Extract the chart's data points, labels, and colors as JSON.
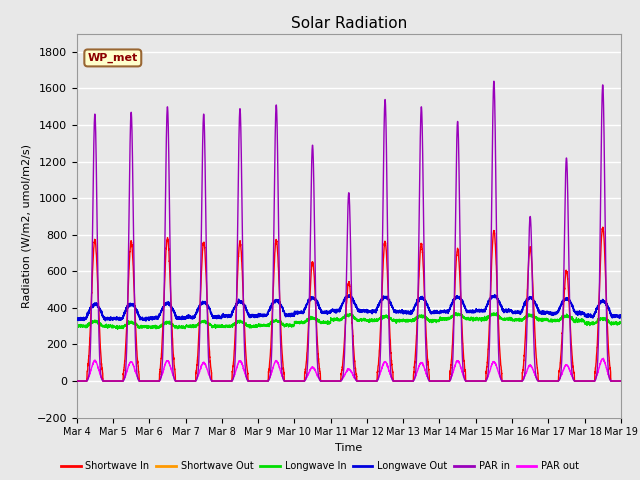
{
  "title": "Solar Radiation",
  "xlabel": "Time",
  "ylabel": "Radiation (W/m2, umol/m2/s)",
  "ylim": [
    -200,
    1900
  ],
  "xlim": [
    0,
    15
  ],
  "yticks": [
    -200,
    0,
    200,
    400,
    600,
    800,
    1000,
    1200,
    1400,
    1600,
    1800
  ],
  "xtick_labels": [
    "Mar 4",
    "Mar 5",
    "Mar 6",
    "Mar 7",
    "Mar 8",
    "Mar 9",
    "Mar 10",
    "Mar 11",
    "Mar 12",
    "Mar 13",
    "Mar 14",
    "Mar 15",
    "Mar 16",
    "Mar 17",
    "Mar 18",
    "Mar 19"
  ],
  "plot_bg": "#e8e8e8",
  "fig_bg": "#e8e8e8",
  "grid_color": "#ffffff",
  "annotation_label": "WP_met",
  "annotation_bg": "#ffffcc",
  "annotation_border": "#996633",
  "series": {
    "shortwave_in": {
      "color": "#ff0000",
      "label": "Shortwave In"
    },
    "shortwave_out": {
      "color": "#ff9900",
      "label": "Shortwave Out"
    },
    "longwave_in": {
      "color": "#00dd00",
      "label": "Longwave In"
    },
    "longwave_out": {
      "color": "#0000dd",
      "label": "Longwave Out"
    },
    "par_in": {
      "color": "#9900bb",
      "label": "PAR in"
    },
    "par_out": {
      "color": "#ff00ff",
      "label": "PAR out"
    }
  },
  "par_in_peaks": [
    1460,
    1470,
    1500,
    1460,
    1490,
    1510,
    1290,
    1030,
    1540,
    1500,
    1420,
    1640,
    900,
    1220,
    1620
  ],
  "sw_in_peaks": [
    770,
    760,
    780,
    760,
    760,
    770,
    650,
    540,
    760,
    750,
    720,
    820,
    730,
    600,
    840
  ],
  "par_out_peaks": [
    110,
    105,
    110,
    100,
    110,
    110,
    75,
    65,
    105,
    100,
    110,
    105,
    85,
    88,
    120
  ],
  "lw_in_base": [
    300,
    295,
    295,
    300,
    300,
    305,
    320,
    335,
    330,
    330,
    340,
    340,
    335,
    330,
    315
  ],
  "lw_out_base": [
    340,
    340,
    345,
    350,
    355,
    360,
    375,
    385,
    380,
    375,
    380,
    385,
    375,
    370,
    355
  ]
}
